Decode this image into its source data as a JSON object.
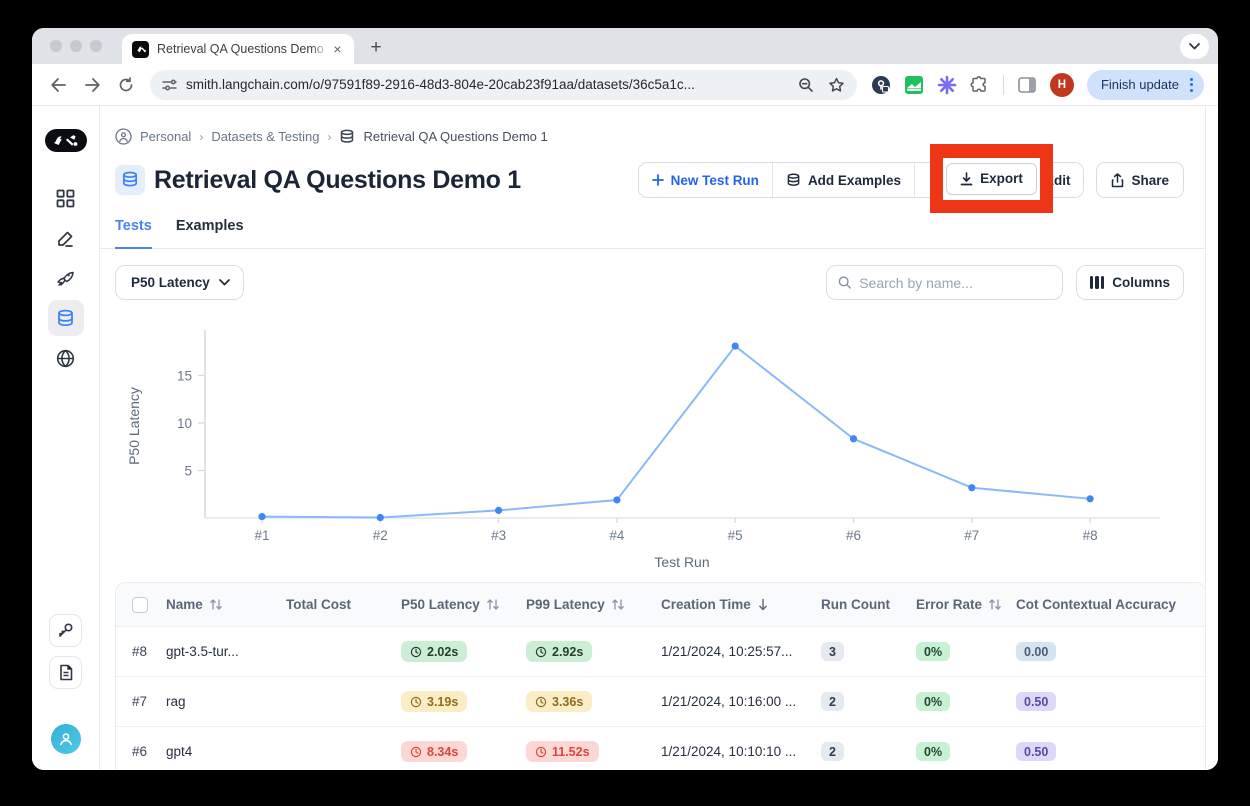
{
  "browser": {
    "tab_title": "Retrieval QA Questions Demo",
    "close_glyph": "×",
    "new_tab_glyph": "+",
    "url": "smith.langchain.com/o/97591f89-2916-48d3-804e-20cab23f91aa/datasets/36c5a1c...",
    "profile_initial": "H",
    "update_button": "Finish update"
  },
  "breadcrumb": {
    "items": [
      "Personal",
      "Datasets & Testing",
      "Retrieval QA Questions Demo 1"
    ]
  },
  "header": {
    "title": "Retrieval QA Questions Demo 1",
    "buttons": {
      "new_test_run": "New Test Run",
      "add_examples": "Add Examples",
      "export": "Export",
      "edit": "Edit",
      "share": "Share"
    }
  },
  "page_tabs": {
    "tests": "Tests",
    "examples": "Examples"
  },
  "filter": {
    "metric": "P50 Latency"
  },
  "search": {
    "placeholder": "Search by name..."
  },
  "columns_button": "Columns",
  "chart_data": {
    "type": "line",
    "x": [
      "#1",
      "#2",
      "#3",
      "#4",
      "#5",
      "#6",
      "#7",
      "#8"
    ],
    "values": [
      0.15,
      0.05,
      0.8,
      1.9,
      18.1,
      8.34,
      3.19,
      2.02
    ],
    "xlabel": "Test Run",
    "ylabel": "P50 Latency",
    "yticks": [
      5,
      10,
      15
    ],
    "ylim": [
      0,
      19.5
    ],
    "grid": false,
    "legend": "none",
    "line_color": "#8ab9f8",
    "point_color": "#4285f4"
  },
  "table": {
    "headers": [
      {
        "label": "Name",
        "sort": "both"
      },
      {
        "label": "Total Cost",
        "sort": null
      },
      {
        "label": "P50 Latency",
        "sort": "both"
      },
      {
        "label": "P99 Latency",
        "sort": "both"
      },
      {
        "label": "Creation Time",
        "sort": "desc"
      },
      {
        "label": "Run Count",
        "sort": null
      },
      {
        "label": "Error Rate",
        "sort": "both"
      },
      {
        "label": "Cot Contextual Accuracy",
        "sort": null
      }
    ],
    "rows": [
      {
        "num": "#8",
        "name": "gpt-3.5-tur...",
        "total_cost": "",
        "p50": "2.02s",
        "p99": "2.92s",
        "latency_tone": "green",
        "creation": "1/21/2024, 10:25:57...",
        "run_count": "3",
        "error_rate": "0%",
        "accuracy": "0.00",
        "accuracy_tone": "blue"
      },
      {
        "num": "#7",
        "name": "rag",
        "total_cost": "",
        "p50": "3.19s",
        "p99": "3.36s",
        "latency_tone": "amber",
        "creation": "1/21/2024, 10:16:00 ...",
        "run_count": "2",
        "error_rate": "0%",
        "accuracy": "0.50",
        "accuracy_tone": "purple"
      },
      {
        "num": "#6",
        "name": "gpt4",
        "total_cost": "",
        "p50": "8.34s",
        "p99": "11.52s",
        "latency_tone": "red",
        "creation": "1/21/2024, 10:10:10 ...",
        "run_count": "2",
        "error_rate": "0%",
        "accuracy": "0.50",
        "accuracy_tone": "purple"
      }
    ]
  },
  "colors": {
    "accent_blue": "#2563eb",
    "annotation_red": "#ee3517",
    "chart_line": "#8ab9f8",
    "chart_point": "#4285f4",
    "latency_green_bg": "#cdeed6",
    "latency_amber_bg": "#fbeec7",
    "latency_red_bg": "#fcd7d3",
    "accuracy_blue_bg": "#d5e4f0",
    "accuracy_purple_bg": "#ded8f8"
  },
  "icons": [
    "langsmith-logo",
    "grid-icon",
    "pencil-icon",
    "rocket-icon",
    "database-icon",
    "globe-icon",
    "key-icon",
    "document-icon",
    "person-icon",
    "search-icon",
    "columns-icon",
    "chevron-down-icon",
    "plus-icon",
    "download-icon",
    "edit-pencil-icon",
    "share-icon",
    "clock-icon",
    "sort-icon",
    "back-icon",
    "forward-icon",
    "reload-icon",
    "site-settings-icon",
    "zoom-out-icon",
    "bookmark-star-icon",
    "puzzle-icon",
    "side-panel-icon",
    "kebab-menu-icon",
    "close-icon"
  ]
}
